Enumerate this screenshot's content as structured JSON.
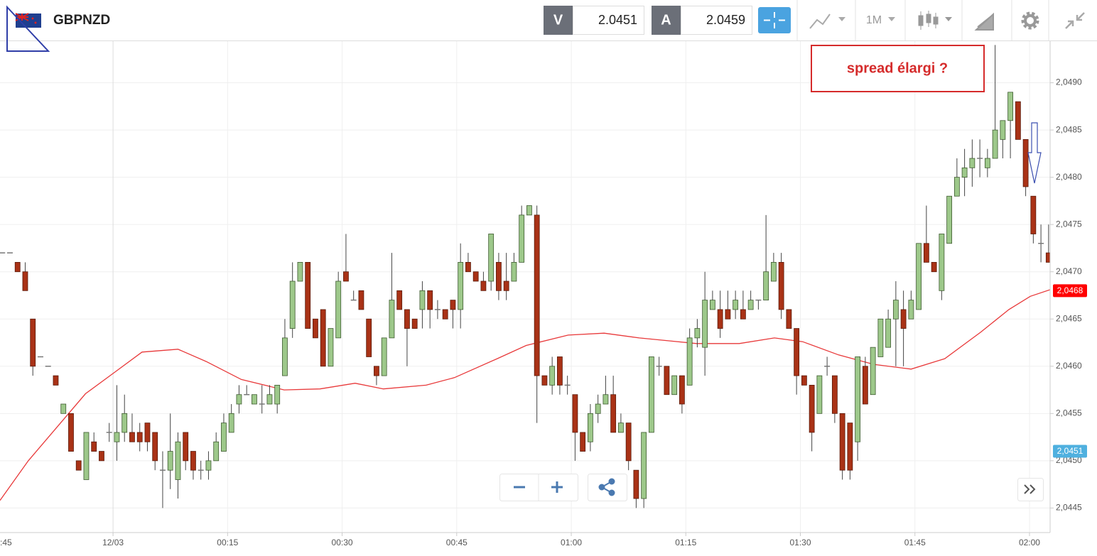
{
  "header": {
    "symbol": "GBPNZD",
    "sell_label": "V",
    "sell_price": "2.0451",
    "buy_label": "A",
    "buy_price": "2.0459",
    "timeframe": "1M"
  },
  "chart_data": {
    "type": "candlestick",
    "annotation": "spread élargi ?",
    "x": [
      -15,
      -14,
      -13,
      -12,
      -11,
      -10,
      -9,
      -8,
      -7,
      -6,
      -5,
      -4,
      -3,
      -2,
      -1,
      0,
      1,
      2,
      3,
      4,
      5,
      6,
      7,
      8,
      9,
      10,
      11,
      12,
      13,
      14,
      15,
      16,
      17,
      18,
      19,
      20,
      21,
      22,
      23,
      24,
      25,
      26,
      27,
      28,
      29,
      30,
      31,
      32,
      33,
      34,
      35,
      36,
      37,
      38,
      39,
      40,
      41,
      42,
      43,
      44,
      45,
      46,
      47,
      48,
      49,
      50,
      51,
      52,
      53,
      54,
      55,
      56,
      57,
      58,
      59,
      60,
      61,
      62,
      63,
      64,
      65,
      66,
      67,
      68,
      69,
      70,
      71,
      72,
      73,
      74,
      75,
      76,
      77,
      78,
      79,
      80,
      81,
      82,
      83,
      84,
      85,
      86,
      87,
      88,
      89,
      90,
      91,
      92,
      93,
      94,
      95,
      96,
      97,
      98,
      99,
      100,
      101,
      102,
      103,
      104,
      105,
      106,
      107,
      108,
      109,
      110,
      111,
      112,
      113,
      114,
      115,
      116,
      117,
      118,
      119,
      120,
      121,
      122
    ],
    "open": [
      2.0472,
      2.0472,
      2.0471,
      2.047,
      2.0465,
      2.0461,
      2.046,
      2.0459,
      2.0455,
      2.0455,
      2.045,
      2.0448,
      2.0452,
      2.0451,
      2.0453,
      2.0452,
      2.0453,
      2.0453,
      2.0453,
      2.0454,
      2.0453,
      2.0449,
      2.0449,
      2.0448,
      2.0453,
      2.0451,
      2.0449,
      2.0449,
      2.045,
      2.0451,
      2.0453,
      2.0456,
      2.0457,
      2.0456,
      2.0456,
      2.0456,
      2.0456,
      2.0459,
      2.0464,
      2.0469,
      2.0471,
      2.0465,
      2.0466,
      2.046,
      2.0463,
      2.047,
      2.0467,
      2.0468,
      2.0465,
      2.046,
      2.0459,
      2.0463,
      2.0468,
      2.0466,
      2.0465,
      2.0466,
      2.0468,
      2.0466,
      2.0466,
      2.0467,
      2.0466,
      2.0471,
      2.047,
      2.0469,
      2.0469,
      2.0471,
      2.0469,
      2.0469,
      2.0471,
      2.0476,
      2.0476,
      2.0459,
      2.0458,
      2.0461,
      2.0458,
      2.0457,
      2.0453,
      2.0452,
      2.0455,
      2.0456,
      2.0457,
      2.0453,
      2.0454,
      2.0449,
      2.0446,
      2.0453,
      2.046,
      2.046,
      2.0457,
      2.0459,
      2.0458,
      2.0463,
      2.0462,
      2.0466,
      2.0466,
      2.0466,
      2.0466,
      2.0466,
      2.0466,
      2.0467,
      2.0467,
      2.0469,
      2.0471,
      2.0466,
      2.0464,
      2.0459,
      2.0458,
      2.0455,
      2.046,
      2.0459,
      2.0455,
      2.0454,
      2.0452,
      2.046,
      2.0457,
      2.0461,
      2.0462,
      2.0465,
      2.0466,
      2.0465,
      2.0466,
      2.0473,
      2.0471,
      2.0468,
      2.0473,
      2.0478,
      2.048,
      2.0481,
      2.0482,
      2.0481,
      2.0482,
      2.0484,
      2.0486,
      2.0488,
      2.0484,
      2.0478,
      2.0473,
      2.0472
    ],
    "high": [
      2.0472,
      2.0472,
      2.0471,
      2.0471,
      2.0465,
      2.0461,
      2.046,
      2.0459,
      2.0456,
      2.0455,
      2.045,
      2.0453,
      2.0453,
      2.0451,
      2.0454,
      2.0458,
      2.0457,
      2.0455,
      2.0454,
      2.0454,
      2.0453,
      2.0451,
      2.0455,
      2.0453,
      2.0453,
      2.0451,
      2.045,
      2.0451,
      2.0453,
      2.0455,
      2.0456,
      2.0458,
      2.0458,
      2.0457,
      2.0458,
      2.0458,
      2.0458,
      2.0465,
      2.0471,
      2.0471,
      2.0471,
      2.0465,
      2.0466,
      2.0464,
      2.047,
      2.0474,
      2.0468,
      2.0468,
      2.0465,
      2.046,
      2.0463,
      2.0472,
      2.0468,
      2.0466,
      2.0465,
      2.0469,
      2.0468,
      2.0467,
      2.0466,
      2.0467,
      2.0473,
      2.0472,
      2.047,
      2.047,
      2.0474,
      2.0472,
      2.0472,
      2.0472,
      2.0477,
      2.0477,
      2.0477,
      2.0459,
      2.0461,
      2.0461,
      2.0459,
      2.0457,
      2.0453,
      2.0456,
      2.0457,
      2.0459,
      2.0459,
      2.0455,
      2.0454,
      2.0449,
      2.0453,
      2.0461,
      2.0461,
      2.046,
      2.0459,
      2.0459,
      2.0464,
      2.0465,
      2.047,
      2.0468,
      2.0468,
      2.0468,
      2.0468,
      2.0468,
      2.0468,
      2.0467,
      2.0476,
      2.0472,
      2.0472,
      2.0466,
      2.0464,
      2.0459,
      2.0458,
      2.0459,
      2.0461,
      2.0459,
      2.0455,
      2.0454,
      2.0461,
      2.0461,
      2.0462,
      2.0465,
      2.0466,
      2.0469,
      2.0468,
      2.0468,
      2.0473,
      2.0477,
      2.0471,
      2.0474,
      2.0478,
      2.0482,
      2.0483,
      2.0484,
      2.0484,
      2.0483,
      2.0494,
      2.0486,
      2.0489,
      2.0488,
      2.0484,
      2.0478,
      2.0475,
      2.0475
    ],
    "low": [
      2.0472,
      2.0472,
      2.047,
      2.0468,
      2.0459,
      2.0461,
      2.046,
      2.0458,
      2.0455,
      2.0451,
      2.0449,
      2.0448,
      2.0451,
      2.045,
      2.0452,
      2.045,
      2.0452,
      2.0452,
      2.0451,
      2.0451,
      2.0449,
      2.0445,
      2.0447,
      2.0446,
      2.0449,
      2.0448,
      2.0448,
      2.0448,
      2.045,
      2.0451,
      2.0453,
      2.0455,
      2.0457,
      2.0456,
      2.0455,
      2.0456,
      2.0455,
      2.0459,
      2.0463,
      2.0469,
      2.0464,
      2.0463,
      2.046,
      2.046,
      2.0463,
      2.0469,
      2.0467,
      2.0466,
      2.0461,
      2.0458,
      2.0459,
      2.0463,
      2.0466,
      2.046,
      2.0464,
      2.0464,
      2.0464,
      2.0465,
      2.0465,
      2.0464,
      2.0464,
      2.047,
      2.0469,
      2.0468,
      2.0468,
      2.0467,
      2.0467,
      2.0469,
      2.0471,
      2.0476,
      2.0454,
      2.0458,
      2.0457,
      2.0457,
      2.0457,
      2.045,
      2.0451,
      2.0451,
      2.0454,
      2.0456,
      2.0453,
      2.0453,
      2.0449,
      2.0445,
      2.0445,
      2.0453,
      2.0459,
      2.0457,
      2.0457,
      2.0455,
      2.0458,
      2.0462,
      2.0459,
      2.0466,
      2.0463,
      2.0465,
      2.0465,
      2.0465,
      2.0466,
      2.0466,
      2.0467,
      2.0469,
      2.0465,
      2.0464,
      2.0457,
      2.0458,
      2.0451,
      2.0455,
      2.0459,
      2.0454,
      2.0448,
      2.0448,
      2.045,
      2.0456,
      2.0457,
      2.0461,
      2.0462,
      2.046,
      2.046,
      2.0465,
      2.0466,
      2.0471,
      2.047,
      2.0467,
      2.0473,
      2.0478,
      2.0478,
      2.0479,
      2.048,
      2.048,
      2.0482,
      2.0482,
      2.0482,
      2.0484,
      2.0478,
      2.0473,
      2.0471,
      2.0471
    ],
    "close": [
      2.0472,
      2.0472,
      2.047,
      2.0468,
      2.046,
      2.0461,
      2.046,
      2.0458,
      2.0456,
      2.0451,
      2.0449,
      2.0453,
      2.0451,
      2.045,
      2.0453,
      2.0453,
      2.0455,
      2.0452,
      2.0452,
      2.0452,
      2.045,
      2.0449,
      2.0451,
      2.0452,
      2.045,
      2.0449,
      2.0449,
      2.045,
      2.0452,
      2.0454,
      2.0455,
      2.0457,
      2.0457,
      2.0457,
      2.0456,
      2.0457,
      2.0458,
      2.0463,
      2.0469,
      2.0471,
      2.0464,
      2.0463,
      2.046,
      2.0464,
      2.0469,
      2.0469,
      2.0467,
      2.0466,
      2.0461,
      2.0459,
      2.0463,
      2.0467,
      2.0466,
      2.0464,
      2.0464,
      2.0468,
      2.0466,
      2.0466,
      2.0465,
      2.0466,
      2.0471,
      2.047,
      2.0469,
      2.0468,
      2.0474,
      2.0468,
      2.0468,
      2.0471,
      2.0476,
      2.0477,
      2.0459,
      2.0458,
      2.046,
      2.0458,
      2.0458,
      2.0453,
      2.0451,
      2.0455,
      2.0456,
      2.0457,
      2.0453,
      2.0454,
      2.045,
      2.0446,
      2.0453,
      2.0461,
      2.046,
      2.0457,
      2.0459,
      2.0456,
      2.0463,
      2.0464,
      2.0467,
      2.0467,
      2.0464,
      2.0465,
      2.0467,
      2.0465,
      2.0467,
      2.0467,
      2.047,
      2.0471,
      2.0466,
      2.0464,
      2.0459,
      2.0458,
      2.0453,
      2.0459,
      2.046,
      2.0455,
      2.0449,
      2.0449,
      2.0461,
      2.0456,
      2.0462,
      2.0465,
      2.0465,
      2.0467,
      2.0464,
      2.0467,
      2.0473,
      2.0471,
      2.047,
      2.0474,
      2.0478,
      2.048,
      2.0481,
      2.0482,
      2.0482,
      2.0482,
      2.0485,
      2.0486,
      2.0489,
      2.0484,
      2.0479,
      2.0474,
      2.0473,
      2.0471
    ],
    "up_color": "#9dc88a",
    "down_color": "#a93216",
    "moving_average": {
      "color": "#e8393a",
      "x": [
        -14.8,
        -11.1,
        -3.6,
        0.1,
        3.8,
        8.5,
        12.2,
        16.8,
        22.4,
        27.1,
        31.7,
        35.4,
        41.0,
        44.7,
        50.3,
        54.1,
        59.6,
        64.3,
        68.9,
        72.7,
        76.4,
        82.0,
        86.6,
        90.3,
        95.0,
        99.6,
        104.5,
        108.9,
        113.6,
        117.3,
        120.1,
        122.7
      ],
      "values": [
        2.04458,
        2.045,
        2.04571,
        2.04593,
        2.04615,
        2.04618,
        2.04605,
        2.04586,
        2.04575,
        2.04576,
        2.04582,
        2.04576,
        2.0458,
        2.04588,
        2.04608,
        2.04622,
        2.04633,
        2.04635,
        2.0463,
        2.04627,
        2.04624,
        2.04624,
        2.0463,
        2.04626,
        2.04612,
        2.04602,
        2.04597,
        2.04608,
        2.04636,
        2.0466,
        2.04674,
        2.04681
      ]
    },
    "price_labels": [
      {
        "value": 2.0468,
        "label": "2,0468",
        "color": "#ff0000"
      },
      {
        "value": 2.0451,
        "label": "2,0451",
        "color": "#4fb0df"
      }
    ],
    "xlim": [
      -14.8,
      122.7
    ],
    "xticks": [
      {
        "value": -15,
        "label": ":45"
      },
      {
        "value": 0,
        "label": "12/03"
      },
      {
        "value": 15,
        "label": "00:15"
      },
      {
        "value": 30,
        "label": "00:30"
      },
      {
        "value": 45,
        "label": "00:45"
      },
      {
        "value": 60,
        "label": "01:00"
      },
      {
        "value": 75,
        "label": "01:15"
      },
      {
        "value": 90,
        "label": "01:30"
      },
      {
        "value": 105,
        "label": "01:45"
      },
      {
        "value": 120,
        "label": "02:00"
      }
    ],
    "ylim": [
      2.04424,
      2.04944
    ],
    "yticks": [
      {
        "value": 2.0445,
        "label": "2,0445"
      },
      {
        "value": 2.045,
        "label": "2,0450"
      },
      {
        "value": 2.0455,
        "label": "2,0455"
      },
      {
        "value": 2.046,
        "label": "2,0460"
      },
      {
        "value": 2.0465,
        "label": "2,0465"
      },
      {
        "value": 2.047,
        "label": "2,0470"
      },
      {
        "value": 2.0475,
        "label": "2,0475"
      },
      {
        "value": 2.048,
        "label": "2,0480"
      },
      {
        "value": 2.0485,
        "label": "2,0485"
      },
      {
        "value": 2.049,
        "label": "2,0490"
      }
    ],
    "grid": true
  }
}
